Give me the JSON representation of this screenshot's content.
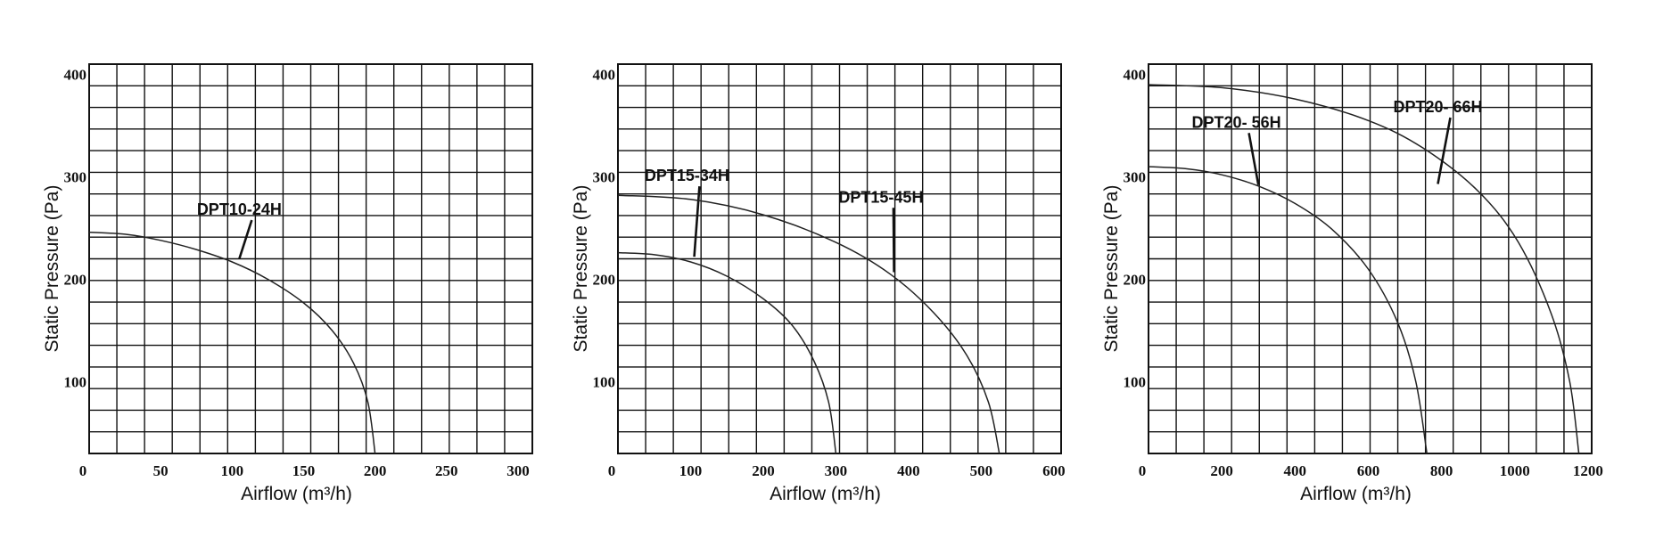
{
  "chart_data": [
    {
      "type": "line",
      "xlabel": "Airflow (m³/h)",
      "ylabel": "Static Pressure (Pa)",
      "xlim": [
        0,
        310
      ],
      "ylim": [
        30,
        410
      ],
      "xticks": [
        "0",
        "50",
        "100",
        "150",
        "200",
        "250",
        "300"
      ],
      "xtick_values": [
        0,
        50,
        100,
        150,
        200,
        250,
        300
      ],
      "yticks": [
        "100",
        "200",
        "300",
        "400"
      ],
      "ytick_values": [
        100,
        200,
        300,
        400
      ],
      "grid": true,
      "series": [
        {
          "name": "DPT10-24H",
          "x": [
            0,
            25,
            50,
            75,
            100,
            125,
            150,
            170,
            185,
            195,
            200
          ],
          "y": [
            246,
            244,
            238,
            229,
            217,
            200,
            177,
            150,
            118,
            80,
            30
          ],
          "label_at": [
            105,
            263
          ],
          "pointer_at": [
            105,
            220
          ]
        }
      ]
    },
    {
      "type": "line",
      "xlabel": "Airflow (m³/h)",
      "ylabel": "Static Pressure (Pa)",
      "xlim": [
        0,
        610
      ],
      "ylim": [
        30,
        410
      ],
      "xticks": [
        "0",
        "100",
        "200",
        "300",
        "400",
        "500",
        "600"
      ],
      "xtick_values": [
        0,
        100,
        200,
        300,
        400,
        500,
        600
      ],
      "yticks": [
        "100",
        "200",
        "300",
        "400"
      ],
      "ytick_values": [
        100,
        200,
        300,
        400
      ],
      "grid": true,
      "series": [
        {
          "name": "DPT15-34H",
          "x": [
            0,
            50,
            100,
            150,
            200,
            240,
            270,
            290,
            300
          ],
          "y": [
            226,
            224,
            217,
            203,
            181,
            155,
            120,
            80,
            30
          ],
          "label_at": [
            95,
            296
          ],
          "pointer_at": [
            105,
            222
          ]
        },
        {
          "name": "DPT15-45H",
          "x": [
            0,
            100,
            200,
            300,
            375,
            435,
            480,
            510,
            525
          ],
          "y": [
            282,
            278,
            263,
            236,
            205,
            167,
            126,
            80,
            30
          ],
          "label_at": [
            362,
            275
          ],
          "pointer_at": [
            380,
            207
          ]
        }
      ]
    },
    {
      "type": "line",
      "xlabel": "Airflow (m³/h)",
      "ylabel": "Static Pressure (Pa)",
      "xlim": [
        0,
        1210
      ],
      "ylim": [
        30,
        410
      ],
      "xticks": [
        "0",
        "200",
        "400",
        "600",
        "800",
        "1000",
        "1200"
      ],
      "xtick_values": [
        0,
        200,
        400,
        600,
        800,
        1000,
        1200
      ],
      "yticks": [
        "100",
        "200",
        "300",
        "400"
      ],
      "ytick_values": [
        100,
        200,
        300,
        400
      ],
      "grid": true,
      "series": [
        {
          "name": "DPT20- 56H",
          "x": [
            0,
            100,
            200,
            300,
            400,
            500,
            600,
            680,
            730,
            760
          ],
          "y": [
            310,
            308,
            302,
            291,
            274,
            249,
            210,
            158,
            100,
            30
          ],
          "label_at": [
            240,
            348
          ],
          "pointer_at": [
            300,
            292
          ]
        },
        {
          "name": "DPT20- 66H",
          "x": [
            0,
            200,
            400,
            600,
            750,
            900,
            1010,
            1100,
            1150,
            1175
          ],
          "y": [
            390,
            387,
            376,
            355,
            328,
            286,
            236,
            166,
            100,
            30
          ],
          "label_at": [
            790,
            363
          ],
          "pointer_at": [
            790,
            293
          ]
        }
      ]
    }
  ]
}
